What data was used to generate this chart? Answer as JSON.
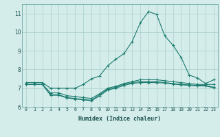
{
  "title": "",
  "xlabel": "Humidex (Indice chaleur)",
  "ylabel": "",
  "bg_color": "#d4ecea",
  "grid_color": "#a8cfcc",
  "line_color": "#1a7a6e",
  "xmin": -0.5,
  "xmax": 23.5,
  "ymin": 6,
  "ymax": 11.5,
  "yticks": [
    6,
    7,
    8,
    9,
    10,
    11
  ],
  "xticks": [
    0,
    1,
    2,
    3,
    4,
    5,
    6,
    7,
    8,
    9,
    10,
    11,
    12,
    13,
    14,
    15,
    16,
    17,
    18,
    19,
    20,
    21,
    22,
    23
  ],
  "series": [
    [
      7.3,
      7.3,
      7.3,
      7.0,
      7.0,
      7.0,
      7.0,
      7.2,
      7.5,
      7.65,
      8.2,
      8.55,
      8.85,
      9.5,
      10.5,
      11.1,
      10.95,
      9.8,
      9.3,
      8.65,
      7.7,
      7.55,
      7.25,
      7.45
    ],
    [
      7.2,
      7.2,
      7.2,
      6.75,
      6.75,
      6.6,
      6.55,
      6.5,
      6.45,
      6.7,
      7.0,
      7.1,
      7.25,
      7.35,
      7.45,
      7.45,
      7.45,
      7.4,
      7.35,
      7.3,
      7.25,
      7.2,
      7.2,
      7.2
    ],
    [
      7.2,
      7.2,
      7.2,
      6.65,
      6.65,
      6.5,
      6.45,
      6.4,
      6.35,
      6.65,
      6.95,
      7.05,
      7.2,
      7.3,
      7.35,
      7.35,
      7.35,
      7.3,
      7.25,
      7.2,
      7.18,
      7.15,
      7.15,
      7.05
    ],
    [
      7.2,
      7.2,
      7.2,
      6.62,
      6.62,
      6.48,
      6.42,
      6.38,
      6.33,
      6.58,
      6.9,
      7.0,
      7.15,
      7.25,
      7.3,
      7.3,
      7.3,
      7.27,
      7.22,
      7.18,
      7.15,
      7.12,
      7.12,
      7.02
    ]
  ]
}
